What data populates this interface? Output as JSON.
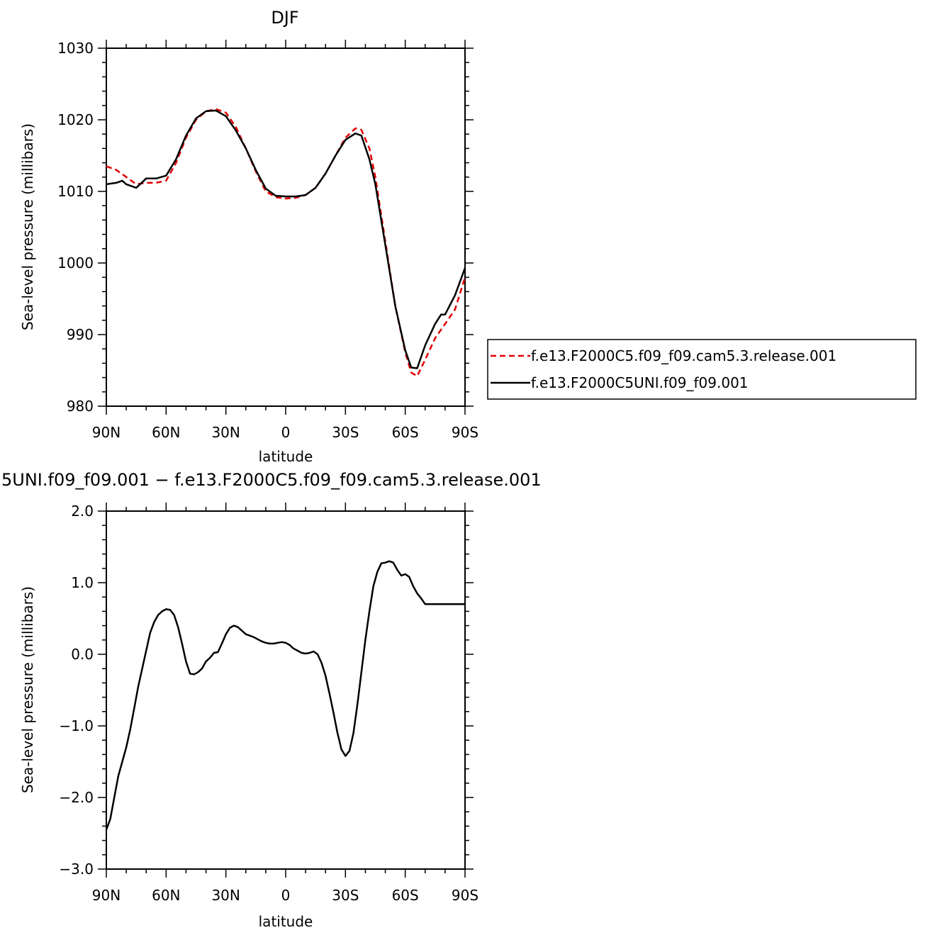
{
  "chart_data": [
    {
      "type": "line",
      "title": "DJF",
      "xlabel": "latitude",
      "ylabel": "Sea-level pressure (millibars)",
      "xlim": [
        -90,
        90
      ],
      "ylim": [
        980,
        1030
      ],
      "x_ticks": [
        -90,
        -60,
        -30,
        0,
        30,
        60,
        90
      ],
      "x_tick_labels": [
        "90N",
        "60N",
        "30N",
        "0",
        "30S",
        "60S",
        "90S"
      ],
      "y_ticks": [
        980,
        990,
        1000,
        1010,
        1020,
        1030
      ],
      "y_tick_labels": [
        "980",
        "990",
        "1000",
        "1010",
        "1020",
        "1030"
      ],
      "legend_placement": "right",
      "series": [
        {
          "name": "f.e13.F2000C5.f09_f09.cam5.3.release.001",
          "color": "#e00000",
          "dash": "dashed",
          "x": [
            -90,
            -85,
            -80,
            -75,
            -70,
            -65,
            -60,
            -55,
            -50,
            -45,
            -40,
            -35,
            -30,
            -25,
            -20,
            -15,
            -10,
            -5,
            0,
            5,
            10,
            15,
            20,
            25,
            30,
            35,
            38,
            42,
            45,
            50,
            55,
            60,
            63,
            66,
            70,
            75,
            80,
            85,
            90
          ],
          "y": [
            1013.5,
            1013.0,
            1012.0,
            1011.0,
            1011.2,
            1011.2,
            1011.5,
            1014.0,
            1017.5,
            1020.0,
            1021.2,
            1021.5,
            1021.0,
            1019.0,
            1016.0,
            1012.8,
            1010.0,
            1009.2,
            1009.0,
            1009.1,
            1009.5,
            1010.5,
            1012.5,
            1015.0,
            1017.5,
            1018.8,
            1018.6,
            1016.0,
            1012.0,
            1003.0,
            994.0,
            987.5,
            984.7,
            984.2,
            986.5,
            989.5,
            991.5,
            993.5,
            998.0
          ]
        },
        {
          "name": "f.e13.F2000C5UNI.f09_f09.001",
          "color": "#000000",
          "dash": "solid",
          "x": [
            -90,
            -85,
            -82,
            -80,
            -75,
            -70,
            -65,
            -60,
            -55,
            -50,
            -45,
            -40,
            -35,
            -30,
            -25,
            -20,
            -15,
            -10,
            -5,
            0,
            5,
            10,
            15,
            20,
            25,
            30,
            35,
            38,
            42,
            45,
            50,
            55,
            60,
            63,
            66,
            70,
            75,
            78,
            80,
            85,
            90
          ],
          "y": [
            1011.0,
            1011.2,
            1011.5,
            1011.0,
            1010.5,
            1011.8,
            1011.8,
            1012.2,
            1014.5,
            1017.8,
            1020.2,
            1021.2,
            1021.3,
            1020.5,
            1018.5,
            1016.0,
            1013.0,
            1010.4,
            1009.4,
            1009.3,
            1009.3,
            1009.5,
            1010.5,
            1012.5,
            1015.0,
            1017.2,
            1018.1,
            1017.8,
            1014.5,
            1011.0,
            1002.5,
            994.0,
            987.8,
            985.4,
            985.3,
            988.5,
            991.5,
            992.8,
            992.8,
            995.5,
            999.3
          ]
        }
      ]
    },
    {
      "type": "line",
      "title": "5UNI.f09_f09.001  −  f.e13.F2000C5.f09_f09.cam5.3.release.001",
      "xlabel": "latitude",
      "ylabel": "Sea-level pressure (millibars)",
      "xlim": [
        -90,
        90
      ],
      "ylim": [
        -3.0,
        2.0
      ],
      "x_ticks": [
        -90,
        -60,
        -30,
        0,
        30,
        60,
        90
      ],
      "x_tick_labels": [
        "90N",
        "60N",
        "30N",
        "0",
        "30S",
        "60S",
        "90S"
      ],
      "y_ticks": [
        -3.0,
        -2.0,
        -1.0,
        0.0,
        1.0,
        2.0
      ],
      "y_tick_labels": [
        "−3.0",
        "−2.0",
        "−1.0",
        "0.0",
        "1.0",
        "2.0"
      ],
      "series": [
        {
          "color": "#000000",
          "dash": "solid",
          "x": [
            -90,
            -88,
            -86,
            -84,
            -82,
            -80,
            -78,
            -76,
            -74,
            -72,
            -70,
            -68,
            -66,
            -64,
            -62,
            -60,
            -58,
            -56,
            -54,
            -52,
            -50,
            -48,
            -46,
            -44,
            -42,
            -40,
            -38,
            -36,
            -34,
            -32,
            -30,
            -28,
            -26,
            -24,
            -22,
            -20,
            -18,
            -16,
            -14,
            -12,
            -10,
            -8,
            -6,
            -4,
            -2,
            0,
            2,
            4,
            6,
            8,
            10,
            12,
            14,
            16,
            18,
            20,
            22,
            24,
            26,
            28,
            30,
            32,
            34,
            36,
            38,
            40,
            42,
            44,
            46,
            48,
            50,
            52,
            54,
            56,
            58,
            60,
            62,
            64,
            66,
            68,
            70,
            72,
            74,
            76,
            78,
            80,
            82,
            84,
            86,
            88,
            90
          ],
          "y": [
            -2.45,
            -2.3,
            -2.0,
            -1.7,
            -1.5,
            -1.3,
            -1.05,
            -0.75,
            -0.45,
            -0.2,
            0.05,
            0.3,
            0.45,
            0.55,
            0.6,
            0.63,
            0.62,
            0.55,
            0.38,
            0.15,
            -0.1,
            -0.27,
            -0.28,
            -0.25,
            -0.2,
            -0.1,
            -0.05,
            0.02,
            0.03,
            0.15,
            0.28,
            0.37,
            0.4,
            0.38,
            0.33,
            0.28,
            0.26,
            0.24,
            0.21,
            0.18,
            0.16,
            0.15,
            0.15,
            0.16,
            0.17,
            0.16,
            0.13,
            0.08,
            0.05,
            0.02,
            0.01,
            0.02,
            0.04,
            0.0,
            -0.12,
            -0.3,
            -0.55,
            -0.82,
            -1.1,
            -1.33,
            -1.42,
            -1.35,
            -1.1,
            -0.7,
            -0.25,
            0.2,
            0.6,
            0.95,
            1.15,
            1.27,
            1.28,
            1.3,
            1.28,
            1.18,
            1.1,
            1.12,
            1.08,
            0.95,
            0.85,
            0.78,
            0.7,
            0.7,
            0.7,
            0.7,
            0.7,
            0.7,
            0.7,
            0.7,
            0.7,
            0.7,
            0.7
          ]
        }
      ]
    }
  ]
}
